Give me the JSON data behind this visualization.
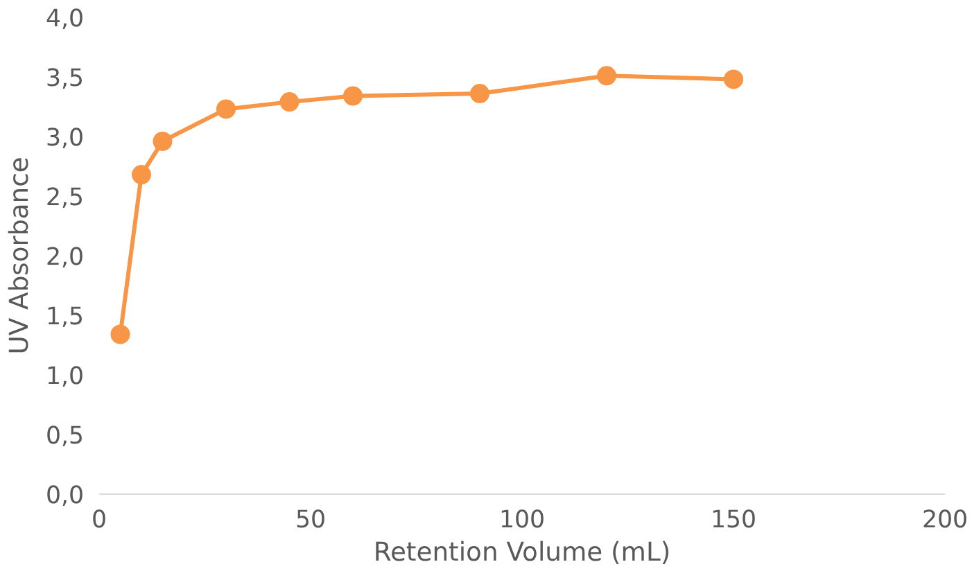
{
  "chart_data": {
    "type": "line",
    "xlabel": "Retention Volume (mL)",
    "ylabel": "UV Absorbance",
    "x": [
      5,
      10,
      15,
      30,
      45,
      60,
      90,
      120,
      150
    ],
    "series": [
      {
        "color": "#f79646",
        "values": [
          1.34,
          2.68,
          2.96,
          3.23,
          3.29,
          3.34,
          3.36,
          3.51,
          3.48
        ]
      }
    ],
    "xlim": [
      0,
      200
    ],
    "xticks": [
      0,
      50,
      100,
      150,
      200
    ],
    "ylim": [
      0,
      4
    ],
    "yticks": [
      {
        "value": 0,
        "label": "0,0"
      },
      {
        "value": 0.5,
        "label": "0,5"
      },
      {
        "value": 1,
        "label": "1,0"
      },
      {
        "value": 1.5,
        "label": "1,5"
      },
      {
        "value": 2,
        "label": "2,0"
      },
      {
        "value": 2.5,
        "label": "2,5"
      },
      {
        "value": 3,
        "label": "3,0"
      },
      {
        "value": 3.5,
        "label": "3,5"
      },
      {
        "value": 4,
        "label": "4,0"
      }
    ],
    "grid": false,
    "marker": "circle",
    "line_style": "solid"
  }
}
